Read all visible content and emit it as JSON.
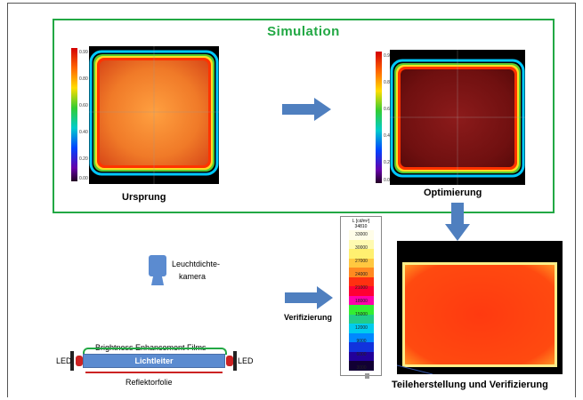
{
  "simulation": {
    "title": "Simulation"
  },
  "labels": {
    "ursprung": "Ursprung",
    "optimierung": "Optimierung",
    "camera_line1": "Leuchtdichte-",
    "camera_line2": "kamera",
    "verifizierung": "Verifizierung",
    "bef": "Brightness Enhancement Films",
    "lichtleiter": "Lichtleiter",
    "led_left": "LED",
    "led_right": "LED",
    "reflektor": "Reflektorfolie",
    "teile": "Teileherstellung und Verifizierung"
  },
  "colorbar": {
    "unit_line1": "L [cd/m²]",
    "unit_line2": "34810",
    "ticks": [
      "33000",
      "30000",
      "27000",
      "24000",
      "21000",
      "18000",
      "15000",
      "12000",
      "9000",
      "6000",
      "3000"
    ]
  },
  "colors": {
    "sim_border": "#22a844",
    "arrow": "#4f7fbf",
    "lightguide": "#5b8bd0",
    "bef_line": "#22a844",
    "reflector_line": "#cc2222",
    "led": "#cc2222"
  },
  "icons": {
    "arrow": "right-arrow-icon",
    "camera": "camera-icon"
  }
}
